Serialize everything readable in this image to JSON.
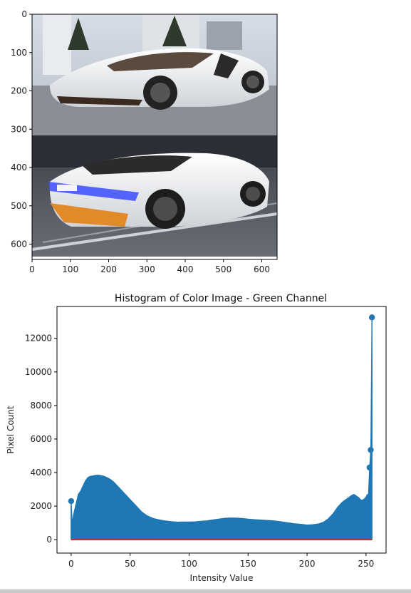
{
  "image_panel": {
    "x_ticks": [
      "0",
      "100",
      "200",
      "300",
      "400",
      "500",
      "600"
    ],
    "y_ticks": [
      "0",
      "100",
      "200",
      "300",
      "400",
      "500",
      "600"
    ],
    "xlim": [
      0,
      640
    ],
    "ylim": [
      0,
      640
    ],
    "colors": {
      "car_body": "#eeeeee",
      "accent": "#e08a2a",
      "taillight": "#3a4cff",
      "road": "#5a5e66",
      "sky": "#c9d3df"
    }
  },
  "chart_data": {
    "type": "stem",
    "title": "Histogram of Color Image - Green Channel",
    "xlabel": "Intensity Value",
    "ylabel": "Pixel Count",
    "xlim": [
      -12,
      267
    ],
    "ylim": [
      -800,
      13900
    ],
    "x_ticks": [
      0,
      50,
      100,
      150,
      200,
      250
    ],
    "y_ticks": [
      0,
      2000,
      4000,
      6000,
      8000,
      10000,
      12000
    ],
    "color": "#1f77b4",
    "baseline_color": "#d62728",
    "grid": false,
    "x": [
      0,
      1,
      2,
      3,
      4,
      5,
      6,
      8,
      10,
      12,
      14,
      16,
      18,
      20,
      22,
      24,
      26,
      28,
      30,
      32,
      34,
      36,
      38,
      40,
      42,
      44,
      46,
      48,
      50,
      52,
      54,
      56,
      58,
      60,
      62,
      64,
      66,
      68,
      70,
      75,
      80,
      85,
      90,
      95,
      100,
      105,
      110,
      115,
      120,
      125,
      130,
      135,
      140,
      145,
      150,
      155,
      160,
      165,
      170,
      175,
      180,
      185,
      190,
      195,
      200,
      205,
      210,
      214,
      218,
      222,
      226,
      230,
      234,
      238,
      240,
      242,
      244,
      246,
      248,
      250,
      251,
      252,
      253,
      254,
      255
    ],
    "values": [
      2300,
      1000,
      1500,
      1800,
      2100,
      2400,
      2700,
      2900,
      3200,
      3500,
      3700,
      3780,
      3800,
      3830,
      3850,
      3840,
      3820,
      3780,
      3720,
      3650,
      3560,
      3450,
      3300,
      3150,
      3000,
      2850,
      2700,
      2550,
      2400,
      2250,
      2100,
      1950,
      1800,
      1650,
      1550,
      1450,
      1380,
      1320,
      1260,
      1180,
      1120,
      1080,
      1050,
      1060,
      1060,
      1070,
      1100,
      1130,
      1180,
      1230,
      1280,
      1300,
      1290,
      1270,
      1230,
      1200,
      1180,
      1160,
      1140,
      1100,
      1050,
      1000,
      950,
      920,
      880,
      900,
      950,
      1050,
      1250,
      1550,
      1950,
      2250,
      2450,
      2650,
      2700,
      2600,
      2500,
      2350,
      2400,
      2550,
      2700,
      2650,
      4300,
      5350,
      13250
    ],
    "markers": [
      {
        "x": 0,
        "y": 2300
      },
      {
        "x": 253,
        "y": 4300
      },
      {
        "x": 254,
        "y": 5350
      },
      {
        "x": 255,
        "y": 13250
      }
    ]
  }
}
